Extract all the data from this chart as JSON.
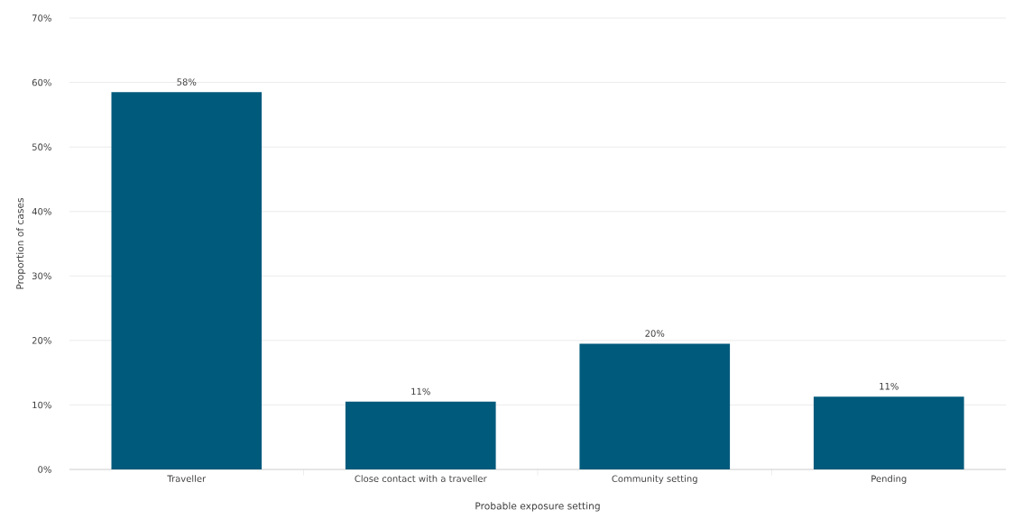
{
  "chart_data": {
    "type": "bar",
    "xlabel": "Probable exposure setting",
    "ylabel": "Proportion of cases",
    "categories": [
      "Traveller",
      "Close contact with a traveller",
      "Community setting",
      "Pending"
    ],
    "values": [
      58.5,
      10.5,
      19.5,
      11.3
    ],
    "value_labels": [
      "58%",
      "11%",
      "20%",
      "11%"
    ],
    "color": "#005a7c",
    "ylim": [
      0,
      70
    ],
    "yticks": [
      {
        "value": 0,
        "label": "0%"
      },
      {
        "value": 10,
        "label": "10%"
      },
      {
        "value": 20,
        "label": "20%"
      },
      {
        "value": 30,
        "label": "30%"
      },
      {
        "value": 40,
        "label": "40%"
      },
      {
        "value": 50,
        "label": "50%"
      },
      {
        "value": 60,
        "label": "60%"
      },
      {
        "value": 70,
        "label": "70%"
      }
    ],
    "grid": "y"
  }
}
